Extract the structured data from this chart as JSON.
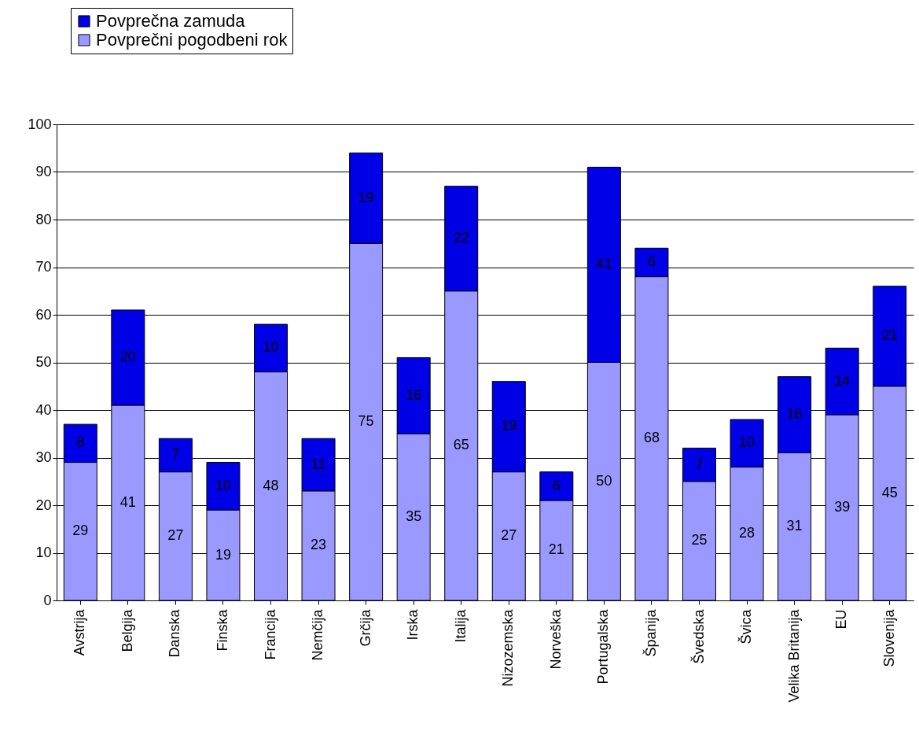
{
  "chart_data": {
    "type": "bar",
    "stacked": true,
    "categories": [
      "Avstrija",
      "Belgija",
      "Danska",
      "Finska",
      "Francija",
      "Nemčija",
      "Grčija",
      "Irska",
      "Italija",
      "Nizozemska",
      "Norveška",
      "Portugalska",
      "Španija",
      "Švedska",
      "Švica",
      "Velika Britanija",
      "EU",
      "Slovenija"
    ],
    "series": [
      {
        "name": "Povprečni pogodbeni rok",
        "color": "#9999ff",
        "values": [
          29,
          41,
          27,
          19,
          48,
          23,
          75,
          35,
          65,
          27,
          21,
          50,
          68,
          25,
          28,
          31,
          39,
          45
        ]
      },
      {
        "name": "Povprečna zamuda",
        "color": "#0000e6",
        "values": [
          8,
          20,
          7,
          10,
          10,
          11,
          19,
          16,
          22,
          19,
          6,
          41,
          6,
          7,
          10,
          16,
          14,
          21
        ]
      }
    ],
    "ylim": [
      0,
      100
    ],
    "yticks": [
      0,
      10,
      20,
      30,
      40,
      50,
      60,
      70,
      80,
      90,
      100
    ],
    "grid": "y",
    "legend": "top left",
    "data_labels": true
  }
}
